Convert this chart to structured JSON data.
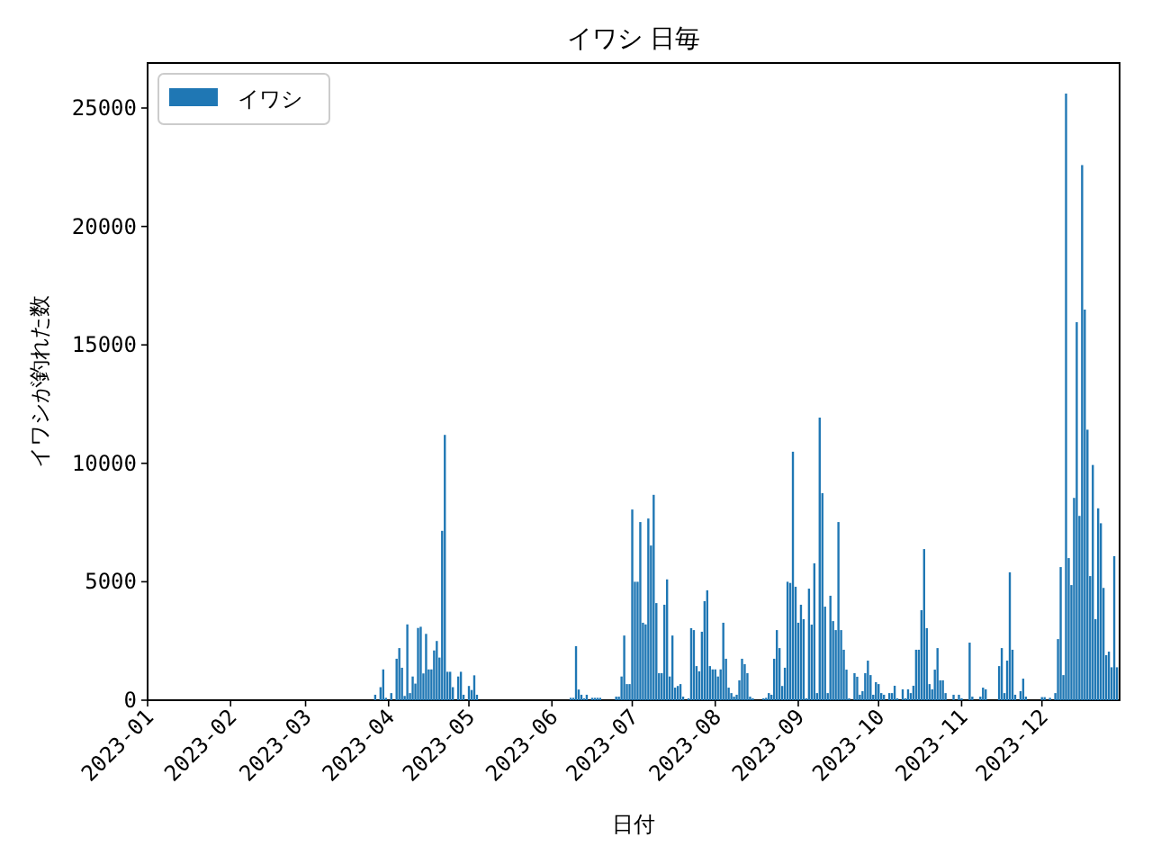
{
  "chart_data": {
    "type": "bar",
    "title": "イワシ 日毎",
    "xlabel": "日付",
    "ylabel": "イワシが釣れた数",
    "xlim": [
      "2023-01-01",
      "2023-12-30"
    ],
    "xticks": [
      {
        "value": "2023-01-01",
        "label": "2023-01"
      },
      {
        "value": "2023-02-01",
        "label": "2023-02"
      },
      {
        "value": "2023-03-01",
        "label": "2023-03"
      },
      {
        "value": "2023-04-01",
        "label": "2023-04"
      },
      {
        "value": "2023-05-01",
        "label": "2023-05"
      },
      {
        "value": "2023-06-01",
        "label": "2023-06"
      },
      {
        "value": "2023-07-01",
        "label": "2023-07"
      },
      {
        "value": "2023-08-01",
        "label": "2023-08"
      },
      {
        "value": "2023-09-01",
        "label": "2023-09"
      },
      {
        "value": "2023-10-01",
        "label": "2023-10"
      },
      {
        "value": "2023-11-01",
        "label": "2023-11"
      },
      {
        "value": "2023-12-01",
        "label": "2023-12"
      }
    ],
    "ylim": [
      0,
      26900
    ],
    "yticks": [
      0,
      5000,
      10000,
      15000,
      20000,
      25000
    ],
    "legend": "top left",
    "grid": false,
    "series": [
      {
        "name": "イワシ",
        "color": "#1f77b4",
        "x": [
          "2023-03-27",
          "2023-03-29",
          "2023-03-30",
          "2023-03-31",
          "2023-04-02",
          "2023-04-04",
          "2023-04-05",
          "2023-04-06",
          "2023-04-07",
          "2023-04-08",
          "2023-04-09",
          "2023-04-10",
          "2023-04-11",
          "2023-04-12",
          "2023-04-13",
          "2023-04-14",
          "2023-04-15",
          "2023-04-16",
          "2023-04-17",
          "2023-04-18",
          "2023-04-19",
          "2023-04-20",
          "2023-04-21",
          "2023-04-22",
          "2023-04-23",
          "2023-04-24",
          "2023-04-25",
          "2023-04-27",
          "2023-04-28",
          "2023-04-29",
          "2023-05-01",
          "2023-05-02",
          "2023-05-03",
          "2023-05-04",
          "2023-06-08",
          "2023-06-09",
          "2023-06-10",
          "2023-06-11",
          "2023-06-12",
          "2023-06-13",
          "2023-06-14",
          "2023-06-16",
          "2023-06-17",
          "2023-06-18",
          "2023-06-19",
          "2023-06-25",
          "2023-06-26",
          "2023-06-27",
          "2023-06-28",
          "2023-06-29",
          "2023-06-30",
          "2023-07-01",
          "2023-07-02",
          "2023-07-03",
          "2023-07-04",
          "2023-07-05",
          "2023-07-06",
          "2023-07-07",
          "2023-07-08",
          "2023-07-09",
          "2023-07-10",
          "2023-07-11",
          "2023-07-12",
          "2023-07-13",
          "2023-07-14",
          "2023-07-15",
          "2023-07-16",
          "2023-07-17",
          "2023-07-18",
          "2023-07-19",
          "2023-07-20",
          "2023-07-22",
          "2023-07-23",
          "2023-07-24",
          "2023-07-25",
          "2023-07-26",
          "2023-07-27",
          "2023-07-28",
          "2023-07-29",
          "2023-07-30",
          "2023-07-31",
          "2023-08-01",
          "2023-08-02",
          "2023-08-03",
          "2023-08-04",
          "2023-08-05",
          "2023-08-06",
          "2023-08-07",
          "2023-08-08",
          "2023-08-09",
          "2023-08-10",
          "2023-08-11",
          "2023-08-12",
          "2023-08-13",
          "2023-08-14",
          "2023-08-15",
          "2023-08-19",
          "2023-08-20",
          "2023-08-21",
          "2023-08-22",
          "2023-08-23",
          "2023-08-24",
          "2023-08-25",
          "2023-08-26",
          "2023-08-27",
          "2023-08-28",
          "2023-08-29",
          "2023-08-30",
          "2023-08-31",
          "2023-09-01",
          "2023-09-02",
          "2023-09-03",
          "2023-09-04",
          "2023-09-05",
          "2023-09-06",
          "2023-09-07",
          "2023-09-08",
          "2023-09-09",
          "2023-09-10",
          "2023-09-11",
          "2023-09-12",
          "2023-09-13",
          "2023-09-14",
          "2023-09-15",
          "2023-09-16",
          "2023-09-17",
          "2023-09-18",
          "2023-09-19",
          "2023-09-20",
          "2023-09-22",
          "2023-09-23",
          "2023-09-24",
          "2023-09-25",
          "2023-09-26",
          "2023-09-27",
          "2023-09-28",
          "2023-09-29",
          "2023-09-30",
          "2023-10-01",
          "2023-10-02",
          "2023-10-03",
          "2023-10-05",
          "2023-10-06",
          "2023-10-07",
          "2023-10-08",
          "2023-10-10",
          "2023-10-11",
          "2023-10-12",
          "2023-10-13",
          "2023-10-14",
          "2023-10-15",
          "2023-10-16",
          "2023-10-17",
          "2023-10-18",
          "2023-10-19",
          "2023-10-20",
          "2023-10-21",
          "2023-10-22",
          "2023-10-23",
          "2023-10-24",
          "2023-10-25",
          "2023-10-26",
          "2023-10-29",
          "2023-10-31",
          "2023-11-01",
          "2023-11-04",
          "2023-11-05",
          "2023-11-08",
          "2023-11-09",
          "2023-11-10",
          "2023-11-15",
          "2023-11-16",
          "2023-11-17",
          "2023-11-18",
          "2023-11-19",
          "2023-11-20",
          "2023-11-21",
          "2023-11-23",
          "2023-11-24",
          "2023-11-25",
          "2023-12-01",
          "2023-12-02",
          "2023-12-04",
          "2023-12-06",
          "2023-12-07",
          "2023-12-08",
          "2023-12-09",
          "2023-12-10",
          "2023-12-11",
          "2023-12-12",
          "2023-12-13",
          "2023-12-14",
          "2023-12-15",
          "2023-12-16",
          "2023-12-17",
          "2023-12-18",
          "2023-12-19",
          "2023-12-20",
          "2023-12-21",
          "2023-12-22",
          "2023-12-23",
          "2023-12-24",
          "2023-12-25",
          "2023-12-26",
          "2023-12-27",
          "2023-12-28",
          "2023-12-29"
        ],
        "values": [
          230,
          550,
          1300,
          100,
          300,
          1750,
          2200,
          1370,
          180,
          3200,
          300,
          1000,
          700,
          3050,
          3100,
          1130,
          2800,
          1300,
          1300,
          2100,
          2500,
          1800,
          7150,
          11200,
          1200,
          1200,
          550,
          1000,
          1200,
          230,
          600,
          430,
          1050,
          230,
          100,
          100,
          2280,
          450,
          230,
          80,
          230,
          100,
          100,
          100,
          100,
          150,
          150,
          1000,
          2730,
          680,
          680,
          8050,
          5000,
          5000,
          7520,
          3270,
          3200,
          7670,
          6530,
          8670,
          4100,
          1140,
          1140,
          4030,
          5100,
          1000,
          2730,
          530,
          600,
          680,
          150,
          80,
          3040,
          2960,
          1440,
          1220,
          2890,
          4180,
          4640,
          1440,
          1300,
          1300,
          1000,
          1300,
          3270,
          1750,
          530,
          300,
          150,
          230,
          840,
          1750,
          1520,
          1140,
          150,
          80,
          80,
          100,
          300,
          230,
          1750,
          2960,
          2200,
          600,
          1370,
          5000,
          4950,
          10490,
          4790,
          3270,
          4030,
          3420,
          80,
          4710,
          3190,
          5780,
          300,
          11930,
          8740,
          3950,
          300,
          4410,
          3340,
          2960,
          7520,
          2960,
          2130,
          1290,
          80,
          1140,
          990,
          230,
          380,
          1140,
          1670,
          1060,
          230,
          760,
          680,
          300,
          230,
          300,
          300,
          610,
          80,
          460,
          80,
          460,
          300,
          610,
          2130,
          2130,
          3800,
          6380,
          3040,
          680,
          460,
          1290,
          2200,
          840,
          840,
          300,
          230,
          230,
          80,
          2430,
          150,
          150,
          530,
          460,
          1440,
          2200,
          300,
          1670,
          5400,
          2130,
          230,
          380,
          910,
          150,
          130,
          130,
          100,
          300,
          2580,
          5620,
          1060,
          25610,
          6000,
          4860,
          8540,
          15960,
          7780,
          22590,
          16490,
          11420,
          5240,
          9930,
          3420,
          8100,
          7470,
          4740,
          1900,
          2050,
          1390,
          6080,
          1390
        ]
      }
    ]
  }
}
